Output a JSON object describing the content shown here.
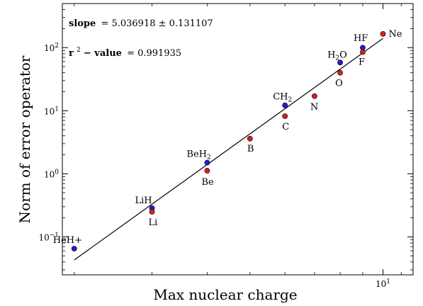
{
  "chart_data": {
    "type": "scatter",
    "title": "",
    "xlabel": "Max nuclear charge",
    "ylabel": "Norm of error operator",
    "xscale": "log",
    "yscale": "log",
    "xlim": [
      1.88,
      11.7
    ],
    "ylim": [
      0.025,
      500
    ],
    "x_ticks": [
      {
        "value": 10,
        "label": "10",
        "exp": "1"
      }
    ],
    "y_ticks": [
      {
        "value": 0.1,
        "label": "10",
        "exp": "−1"
      },
      {
        "value": 1,
        "label": "10",
        "exp": "0"
      },
      {
        "value": 10,
        "label": "10",
        "exp": "1"
      },
      {
        "value": 100,
        "label": "10",
        "exp": "2"
      }
    ],
    "grid": false,
    "series": [
      {
        "color": "#1f1fd6",
        "points": [
          {
            "x": 2,
            "y": 0.065,
            "label": "HeH+"
          },
          {
            "x": 3,
            "y": 0.285,
            "label": "LiH"
          },
          {
            "x": 4,
            "y": 1.5,
            "label": "BeH2"
          },
          {
            "x": 6,
            "y": 12.2,
            "label": "CH2"
          },
          {
            "x": 8,
            "y": 58,
            "label": "H2O"
          },
          {
            "x": 9,
            "y": 100,
            "label": "HF"
          }
        ]
      },
      {
        "color": "#d62020",
        "points": [
          {
            "x": 3,
            "y": 0.25,
            "label": "Li"
          },
          {
            "x": 4,
            "y": 1.12,
            "label": "Be"
          },
          {
            "x": 5,
            "y": 3.6,
            "label": "B"
          },
          {
            "x": 6,
            "y": 8.2,
            "label": "C"
          },
          {
            "x": 7,
            "y": 17,
            "label": "N"
          },
          {
            "x": 8,
            "y": 40,
            "label": "O"
          },
          {
            "x": 9,
            "y": 85,
            "label": "F"
          },
          {
            "x": 10,
            "y": 165,
            "label": "Ne"
          }
        ]
      }
    ],
    "fit_line": {
      "x0": 2,
      "y0": 0.043,
      "x1": 10,
      "y1": 140
    },
    "annotations": {
      "slope_label": "slope",
      "slope_value": "= 5.036918 ± 0.131107",
      "r2_label_base": "r",
      "r2_label_exp": "2",
      "r2_label_rest": " − value",
      "r2_value": "= 0.991935"
    }
  }
}
